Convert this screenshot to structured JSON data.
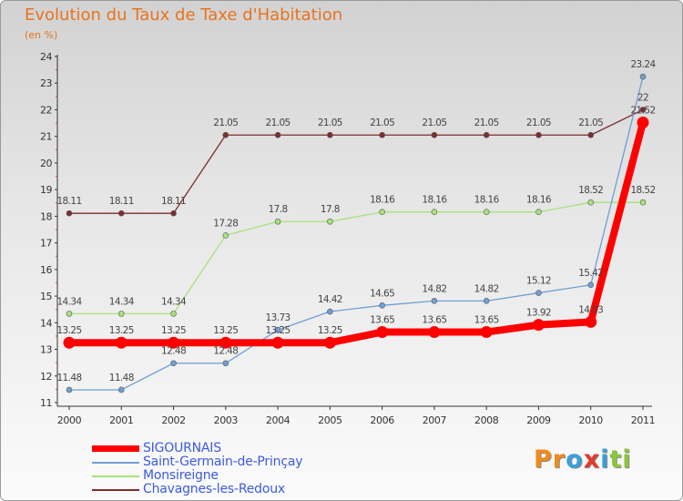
{
  "chart_data": {
    "type": "line",
    "title": "Evolution du Taux de Taxe d'Habitation",
    "subtitle": "(en %)",
    "x": [
      "2000",
      "2001",
      "2002",
      "2003",
      "2004",
      "2005",
      "2006",
      "2007",
      "2008",
      "2009",
      "2010",
      "2011"
    ],
    "ylim": [
      11,
      24
    ],
    "yticks": [
      11,
      12,
      13,
      14,
      15,
      16,
      17,
      18,
      19,
      20,
      21,
      22,
      23,
      24
    ],
    "grid": false,
    "legend_position": "bottom-left",
    "series": [
      {
        "name": "SIGOURNAIS",
        "color": "#ff0000",
        "values": [
          13.25,
          13.25,
          13.25,
          13.25,
          13.25,
          13.25,
          13.65,
          13.65,
          13.65,
          13.92,
          14.03,
          21.52
        ],
        "labels": [
          "13.25",
          "13.25",
          "13.25",
          "13.25",
          "13.25",
          "13.25",
          "13.65",
          "13.65",
          "13.65",
          "13.92",
          "14.03",
          "21.52"
        ]
      },
      {
        "name": "Saint-Germain-de-Prinçay",
        "color": "#6f9fd2",
        "values": [
          11.48,
          11.48,
          12.48,
          12.48,
          13.73,
          14.42,
          14.65,
          14.82,
          14.82,
          15.12,
          15.42,
          23.24
        ],
        "labels": [
          "11.48",
          "11.48",
          "12.48",
          "12.48",
          "13.73",
          "14.42",
          "14.65",
          "14.82",
          "14.82",
          "15.12",
          "15.42",
          "23.24"
        ]
      },
      {
        "name": "Monsireigne",
        "color": "#a6e27a",
        "values": [
          14.34,
          14.34,
          14.34,
          17.28,
          17.8,
          17.8,
          18.16,
          18.16,
          18.16,
          18.16,
          18.52,
          18.52
        ],
        "labels": [
          "14.34",
          "14.34",
          "14.34",
          "17.28",
          "17.8",
          "17.8",
          "18.16",
          "18.16",
          "18.16",
          "18.16",
          "18.52",
          "18.52"
        ]
      },
      {
        "name": "Chavagnes-les-Redoux",
        "color": "#7a2f2f",
        "values": [
          18.11,
          18.11,
          18.11,
          21.05,
          21.05,
          21.05,
          21.05,
          21.05,
          21.05,
          21.05,
          21.05,
          22
        ],
        "labels": [
          "18.11",
          "18.11",
          "18.11",
          "21.05",
          "21.05",
          "21.05",
          "21.05",
          "21.05",
          "21.05",
          "21.05",
          "21.05",
          "22"
        ]
      }
    ]
  },
  "logo": {
    "text": "Proxiti",
    "colors": [
      "#f08a1c",
      "#f08a1c",
      "#3aa0dc",
      "#e23b2a",
      "#3aa0dc",
      "#8cc63f",
      "#8cc63f"
    ]
  }
}
